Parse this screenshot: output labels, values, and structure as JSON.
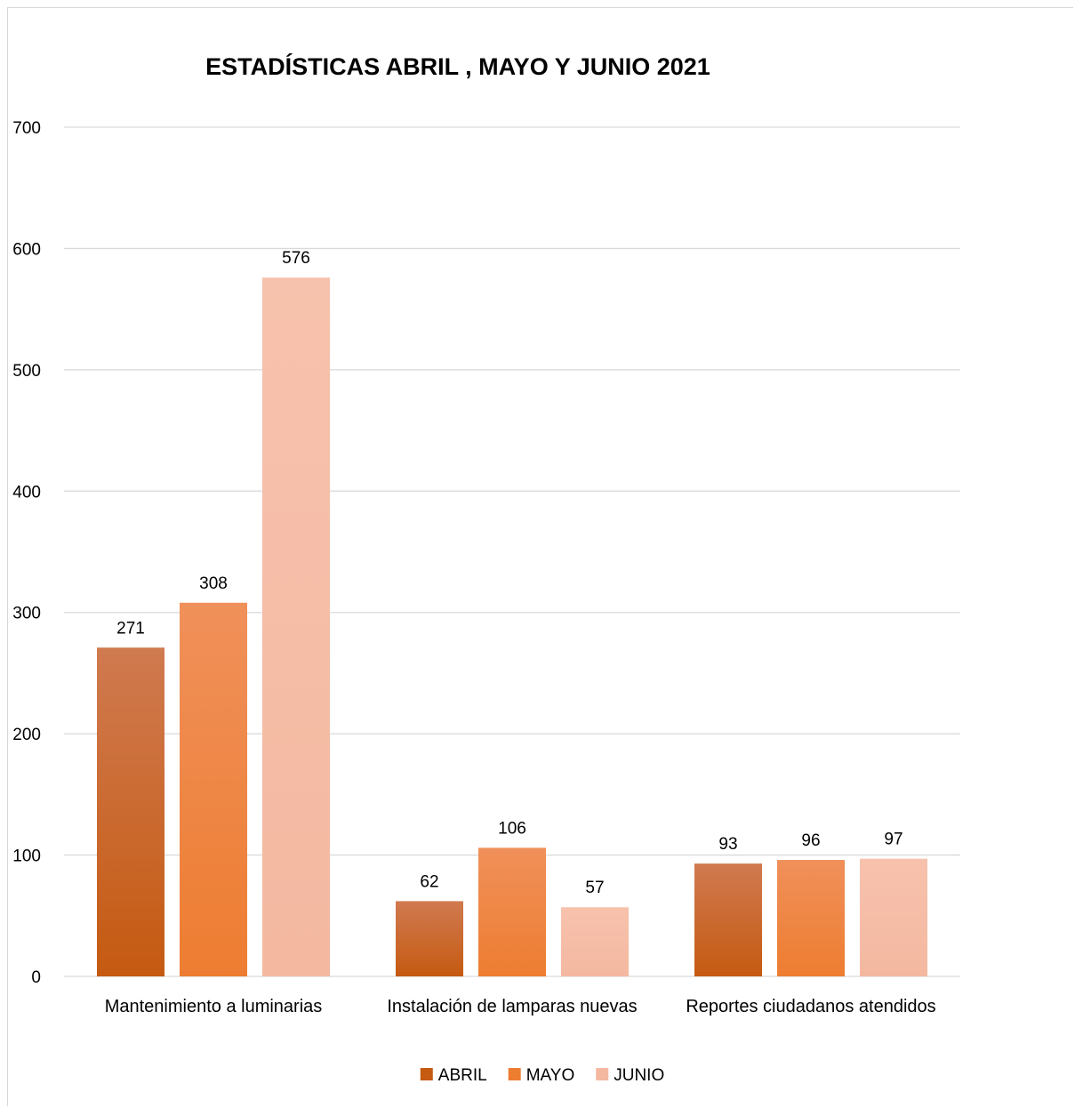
{
  "chart_data": {
    "type": "bar",
    "title": "ESTADÍSTICAS ABRIL , MAYO Y JUNIO  2021",
    "xlabel": "",
    "ylabel": "",
    "ylim": [
      0,
      700
    ],
    "yticks": [
      0,
      100,
      200,
      300,
      400,
      500,
      600,
      700
    ],
    "grid": true,
    "legend_position": "bottom",
    "data_labels": true,
    "categories": [
      "Mantenimiento a luminarias",
      "Instalación de lamparas nuevas",
      "Reportes ciudadanos atendidos"
    ],
    "series": [
      {
        "name": "ABRIL",
        "values": [
          271,
          62,
          93
        ],
        "color": "#c55a11",
        "gradient_top": "#d07a50"
      },
      {
        "name": "MAYO",
        "values": [
          308,
          106,
          96
        ],
        "color": "#ed7d31",
        "gradient_top": "#f0905a"
      },
      {
        "name": "JUNIO",
        "values": [
          576,
          57,
          97
        ],
        "color": "#f4b8a0",
        "gradient_top": "#f7c2ad"
      }
    ]
  }
}
